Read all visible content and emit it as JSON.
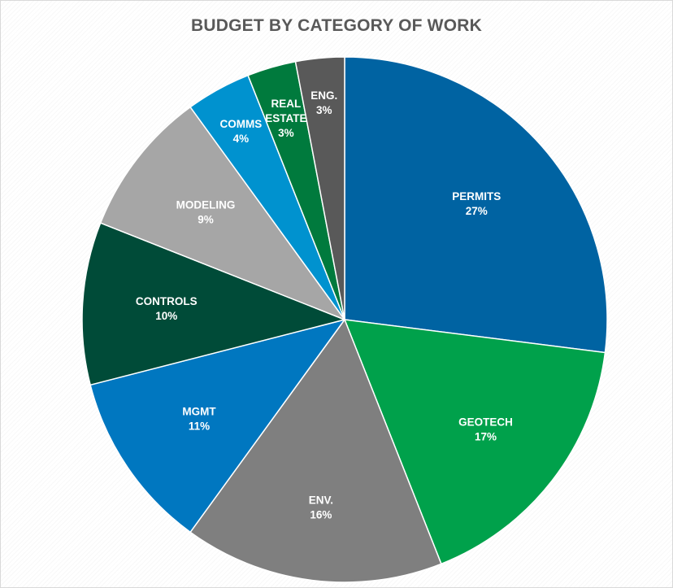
{
  "chart_data": {
    "type": "pie",
    "title": "BUDGET BY CATEGORY OF WORK",
    "slices": [
      {
        "label": [
          "PERMITS"
        ],
        "percent_label": "27%",
        "value": 27,
        "color": "#0063a2"
      },
      {
        "label": [
          "GEOTECH"
        ],
        "percent_label": "17%",
        "value": 17,
        "color": "#00a14b"
      },
      {
        "label": [
          "ENV."
        ],
        "percent_label": "16%",
        "value": 16,
        "color": "#7f7f7f"
      },
      {
        "label": [
          "MGMT"
        ],
        "percent_label": "11%",
        "value": 11,
        "color": "#0077c0"
      },
      {
        "label": [
          "CONTROLS"
        ],
        "percent_label": "10%",
        "value": 10,
        "color": "#004b38"
      },
      {
        "label": [
          "MODELING"
        ],
        "percent_label": "9%",
        "value": 9,
        "color": "#a6a6a6"
      },
      {
        "label": [
          "COMMS"
        ],
        "percent_label": "4%",
        "value": 4,
        "color": "#0092cf"
      },
      {
        "label": [
          "REAL",
          "ESTATE"
        ],
        "percent_label": "3%",
        "value": 3,
        "color": "#007a3d"
      },
      {
        "label": [
          "ENG."
        ],
        "percent_label": "3%",
        "value": 3,
        "color": "#595959"
      }
    ],
    "legend": "none",
    "data_labels": "inside",
    "start_angle": "12 o'clock",
    "direction": "clockwise"
  }
}
